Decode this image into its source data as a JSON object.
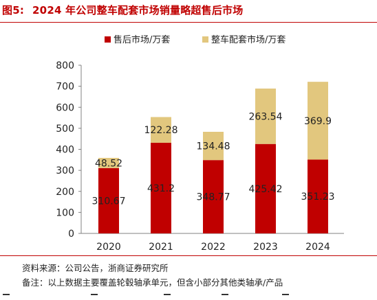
{
  "figure": {
    "label": "图5:",
    "title": "2024 年公司整车配套市场销量略超售后市场"
  },
  "notes": {
    "source": "资料来源：公司公告，浙商证券研究所",
    "remark": "备注：以上数据主要覆盖轮毂轴承单元，但含小部分其他类轴承/产品"
  },
  "colors": {
    "title": "#c00000",
    "aftermarket": "#c00000",
    "oem": "#e2c77e"
  },
  "chart_data": {
    "type": "bar",
    "stacked": true,
    "categories": [
      "2020",
      "2021",
      "2022",
      "2023",
      "2024"
    ],
    "series": [
      {
        "name": "售后市场/万套",
        "values": [
          310.67,
          431.2,
          348.77,
          425.42,
          351.23
        ],
        "labels": [
          "310.67",
          "431.2",
          "348.77",
          "425.42",
          "351.23"
        ]
      },
      {
        "name": "整车配套市场/万套",
        "values": [
          48.52,
          122.28,
          134.48,
          263.54,
          369.9
        ],
        "labels": [
          "48.52",
          "122.28",
          "134.48",
          "263.54",
          "369.9"
        ]
      }
    ],
    "ylim": [
      0,
      800
    ],
    "yticks": [
      "0",
      "100",
      "200",
      "300",
      "400",
      "500",
      "600",
      "700",
      "800"
    ],
    "legend_position": "top",
    "grid": false
  }
}
